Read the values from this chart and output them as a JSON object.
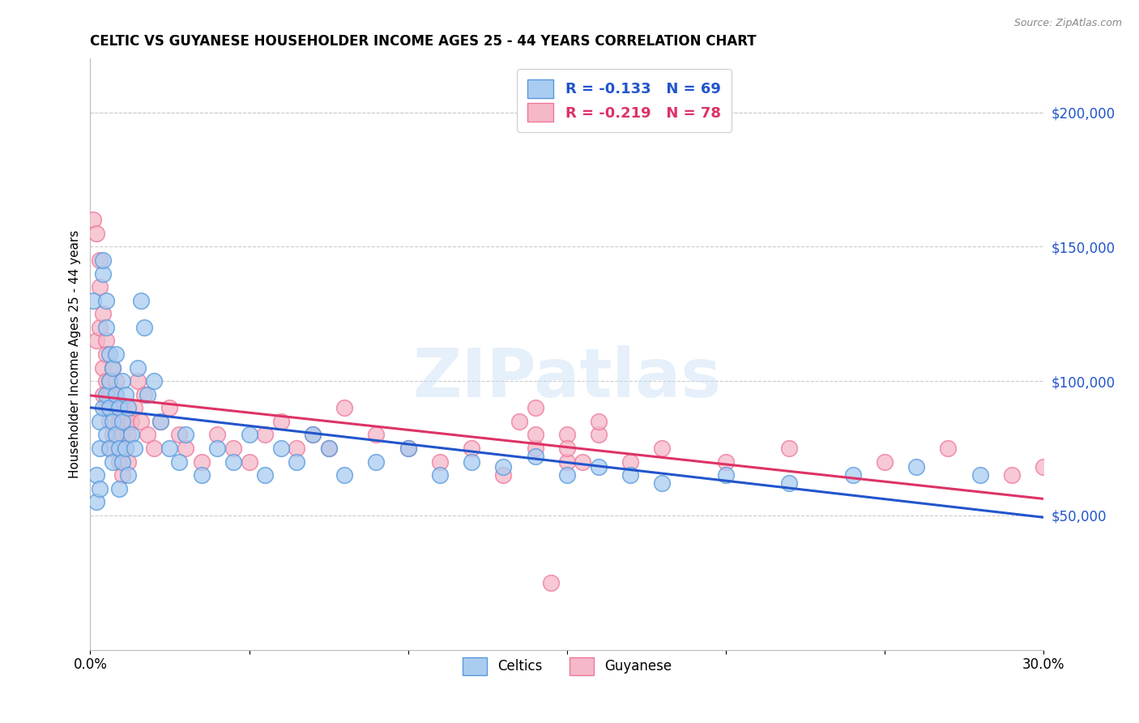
{
  "title": "CELTIC VS GUYANESE HOUSEHOLDER INCOME AGES 25 - 44 YEARS CORRELATION CHART",
  "source": "Source: ZipAtlas.com",
  "ylabel": "Householder Income Ages 25 - 44 years",
  "xlim": [
    0.0,
    0.3
  ],
  "ylim": [
    0,
    220000
  ],
  "xticks": [
    0.0,
    0.05,
    0.1,
    0.15,
    0.2,
    0.25,
    0.3
  ],
  "xticklabels": [
    "0.0%",
    "",
    "",
    "",
    "",
    "",
    "30.0%"
  ],
  "yticks_right": [
    50000,
    100000,
    150000,
    200000
  ],
  "yticklabels_right": [
    "$50,000",
    "$100,000",
    "$150,000",
    "$200,000"
  ],
  "celtics_color": "#aaccf0",
  "guyanese_color": "#f5b8c8",
  "celtics_edge_color": "#5599dd",
  "guyanese_edge_color": "#ee7799",
  "celtics_line_color": "#2255cc",
  "guyanese_line_color": "#dd3366",
  "celtics_R": -0.133,
  "celtics_N": 69,
  "guyanese_R": -0.219,
  "guyanese_N": 78,
  "watermark_text": "ZIPatlas",
  "background_color": "#ffffff",
  "grid_color": "#cccccc",
  "celtics_x": [
    0.001,
    0.002,
    0.002,
    0.003,
    0.003,
    0.003,
    0.004,
    0.004,
    0.004,
    0.005,
    0.005,
    0.005,
    0.005,
    0.006,
    0.006,
    0.006,
    0.006,
    0.007,
    0.007,
    0.007,
    0.008,
    0.008,
    0.008,
    0.009,
    0.009,
    0.009,
    0.01,
    0.01,
    0.01,
    0.011,
    0.011,
    0.012,
    0.012,
    0.013,
    0.014,
    0.015,
    0.016,
    0.017,
    0.018,
    0.02,
    0.022,
    0.025,
    0.028,
    0.03,
    0.035,
    0.04,
    0.045,
    0.05,
    0.055,
    0.06,
    0.065,
    0.07,
    0.075,
    0.08,
    0.09,
    0.1,
    0.11,
    0.12,
    0.13,
    0.14,
    0.15,
    0.16,
    0.17,
    0.18,
    0.2,
    0.22,
    0.24,
    0.26,
    0.28
  ],
  "celtics_y": [
    130000,
    55000,
    65000,
    75000,
    60000,
    85000,
    140000,
    145000,
    90000,
    130000,
    120000,
    80000,
    95000,
    110000,
    100000,
    75000,
    90000,
    105000,
    85000,
    70000,
    95000,
    80000,
    110000,
    90000,
    75000,
    60000,
    100000,
    85000,
    70000,
    95000,
    75000,
    90000,
    65000,
    80000,
    75000,
    105000,
    130000,
    120000,
    95000,
    100000,
    85000,
    75000,
    70000,
    80000,
    65000,
    75000,
    70000,
    80000,
    65000,
    75000,
    70000,
    80000,
    75000,
    65000,
    70000,
    75000,
    65000,
    70000,
    68000,
    72000,
    65000,
    68000,
    65000,
    62000,
    65000,
    62000,
    65000,
    68000,
    65000
  ],
  "guyanese_x": [
    0.001,
    0.002,
    0.002,
    0.003,
    0.003,
    0.003,
    0.004,
    0.004,
    0.004,
    0.005,
    0.005,
    0.005,
    0.005,
    0.006,
    0.006,
    0.006,
    0.006,
    0.007,
    0.007,
    0.007,
    0.008,
    0.008,
    0.008,
    0.009,
    0.009,
    0.009,
    0.01,
    0.01,
    0.01,
    0.011,
    0.011,
    0.012,
    0.012,
    0.013,
    0.014,
    0.015,
    0.016,
    0.017,
    0.018,
    0.02,
    0.022,
    0.025,
    0.028,
    0.03,
    0.035,
    0.04,
    0.045,
    0.05,
    0.055,
    0.06,
    0.065,
    0.07,
    0.075,
    0.08,
    0.09,
    0.1,
    0.11,
    0.12,
    0.13,
    0.14,
    0.15,
    0.16,
    0.17,
    0.14,
    0.15,
    0.16,
    0.15,
    0.155,
    0.14,
    0.18,
    0.2,
    0.22,
    0.25,
    0.27,
    0.29,
    0.3,
    0.135,
    0.145
  ],
  "guyanese_y": [
    160000,
    155000,
    115000,
    145000,
    135000,
    120000,
    125000,
    105000,
    95000,
    115000,
    100000,
    90000,
    110000,
    100000,
    85000,
    95000,
    75000,
    105000,
    80000,
    90000,
    95000,
    80000,
    100000,
    85000,
    90000,
    70000,
    80000,
    90000,
    65000,
    85000,
    75000,
    80000,
    70000,
    85000,
    90000,
    100000,
    85000,
    95000,
    80000,
    75000,
    85000,
    90000,
    80000,
    75000,
    70000,
    80000,
    75000,
    70000,
    80000,
    85000,
    75000,
    80000,
    75000,
    90000,
    80000,
    75000,
    70000,
    75000,
    65000,
    75000,
    70000,
    80000,
    70000,
    90000,
    80000,
    85000,
    75000,
    70000,
    80000,
    75000,
    70000,
    75000,
    70000,
    75000,
    65000,
    68000,
    85000,
    25000
  ]
}
